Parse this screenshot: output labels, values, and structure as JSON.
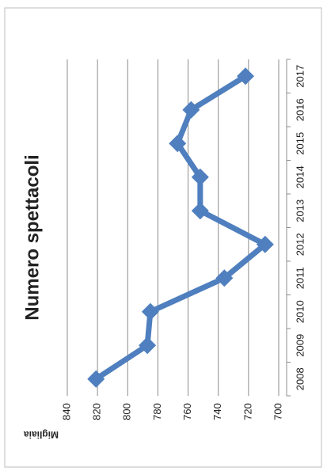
{
  "chart_data": {
    "type": "line",
    "title": "Numero spettacoli",
    "y_label": "Migliaia",
    "categories": [
      "2008",
      "2009",
      "2010",
      "2011",
      "2012",
      "2013",
      "2014",
      "2015",
      "2016",
      "2017"
    ],
    "values": [
      821,
      787,
      785,
      736,
      709,
      752,
      752,
      767,
      758,
      722
    ],
    "color": "#4F7FBE",
    "ylim": [
      700,
      840
    ],
    "yticks": [
      700,
      720,
      740,
      760,
      780,
      800,
      820,
      840
    ],
    "grid": true
  }
}
